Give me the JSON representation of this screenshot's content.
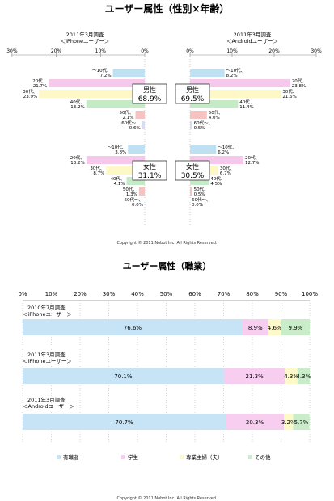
{
  "top_chart": {
    "title": "ユーザー属性（性別×年齢）",
    "copyright": "Copyright © 2011 Nobot Inc. All Rights Reserved.",
    "left_header": [
      "2011年3月調査",
      "＜iPhoneユーザー＞"
    ],
    "right_header": [
      "2011年3月調査",
      "＜Androidユーザー＞"
    ],
    "axis_ticks_left": [
      "30%",
      "20%",
      "10%",
      "0%"
    ],
    "axis_ticks_right": [
      "0%",
      "10%",
      "20%",
      "30%"
    ],
    "iphone_male_box": [
      "男性",
      "68.9%"
    ],
    "iphone_female_box": [
      "女性",
      "31.1%"
    ],
    "android_male_box": [
      "男性",
      "69.5%"
    ],
    "android_female_box": [
      "女性",
      "30.5%"
    ]
  },
  "bottom_chart": {
    "title": "ユーザー属性（職業）",
    "copyright": "Copyright © 2011 Nobot Inc. All Rights Reserved.",
    "axis_ticks": [
      "0%",
      "10%",
      "20%",
      "30%",
      "40%",
      "50%",
      "60%",
      "70%",
      "80%",
      "90%",
      "100%"
    ],
    "legend": [
      "有職者",
      "学生",
      "専業主婦（夫）",
      "その他"
    ]
  },
  "chart_data": [
    {
      "type": "bar",
      "title": "ユーザー属性（性別×年齢）",
      "orientation": "horizontal-butterfly",
      "xlim": [
        0,
        30
      ],
      "colors": {
        "male": [
          "#bfe0f2",
          "#f6c9ec",
          "#fdf8c6",
          "#c4ebc6",
          "#f6c3c3",
          "#dcdcf0",
          "#eeeeee"
        ],
        "female": [
          "#bfe0f2",
          "#f6c9ec",
          "#fdf8c6",
          "#c4ebc6",
          "#f6c3c3",
          "#dcdcf0",
          "#eeeeee"
        ]
      },
      "categories": [
        "〜10代",
        "20代",
        "30代",
        "40代",
        "50代",
        "60代〜"
      ],
      "series": [
        {
          "name": "iPhone 男性",
          "labels": [
            "〜10代、",
            "20代、",
            "30代、",
            "40代、",
            "50代、",
            "60代〜、"
          ],
          "values_text": [
            "7.2%",
            "21.7%",
            "23.9%",
            "13.2%",
            "2.1%",
            "0.6%"
          ],
          "values": [
            7.2,
            21.7,
            23.9,
            13.2,
            2.1,
            0.6
          ]
        },
        {
          "name": "iPhone 女性",
          "labels": [
            "〜10代、",
            "20代、",
            "30代、",
            "40代、",
            "50代、",
            "60代〜、"
          ],
          "values_text": [
            "3.8%",
            "13.2%",
            "8.7%",
            "4.1%",
            "1.3%",
            "0.0%"
          ],
          "values": [
            3.8,
            13.2,
            8.7,
            4.1,
            1.3,
            0.0
          ]
        },
        {
          "name": "Android 男性",
          "labels": [
            "〜10代、",
            "20代、",
            "30代、",
            "40代、",
            "50代、",
            "60代〜、"
          ],
          "values_text": [
            "8.2%",
            "23.8%",
            "21.6%",
            "11.4%",
            "4.0%",
            "0.5%"
          ],
          "values": [
            8.2,
            23.8,
            21.6,
            11.4,
            4.0,
            0.5
          ]
        },
        {
          "name": "Android 女性",
          "labels": [
            "〜10代、",
            "20代、",
            "30代、",
            "40代、",
            "50代、",
            "60代〜、"
          ],
          "values_text": [
            "6.2%",
            "12.7%",
            "6.7%",
            "4.5%",
            "0.5%",
            "0.0%"
          ],
          "values": [
            6.2,
            12.7,
            6.7,
            4.5,
            0.5,
            0.0
          ]
        }
      ]
    },
    {
      "type": "bar",
      "title": "ユーザー属性（職業）",
      "orientation": "horizontal-stacked",
      "xlim": [
        0,
        100
      ],
      "categories": [
        [
          "2010年7月調査",
          "＜iPhoneユーザー＞"
        ],
        [
          "2011年3月調査",
          "＜iPhoneユーザー＞"
        ],
        [
          "2011年3月調査",
          "＜Androidユーザー＞"
        ]
      ],
      "series": [
        {
          "name": "有職者",
          "color": "#c6e4f6",
          "values": [
            76.6,
            70.1,
            70.7
          ],
          "labels": [
            "76.6%",
            "70.1%",
            "70.7%"
          ]
        },
        {
          "name": "学生",
          "color": "#f7cdf0",
          "values": [
            8.9,
            21.3,
            20.3
          ],
          "labels": [
            "8.9%",
            "21.3%",
            "20.3%"
          ]
        },
        {
          "name": "専業主婦（夫）",
          "color": "#fdf9c8",
          "values": [
            4.6,
            4.3,
            3.2
          ],
          "labels": [
            "4.6%",
            "4.3%",
            "3.2%"
          ]
        },
        {
          "name": "その他",
          "color": "#c9edc9",
          "values": [
            9.9,
            4.3,
            5.7
          ],
          "labels": [
            "9.9%",
            "4.3%",
            "5.7%"
          ]
        }
      ]
    }
  ]
}
